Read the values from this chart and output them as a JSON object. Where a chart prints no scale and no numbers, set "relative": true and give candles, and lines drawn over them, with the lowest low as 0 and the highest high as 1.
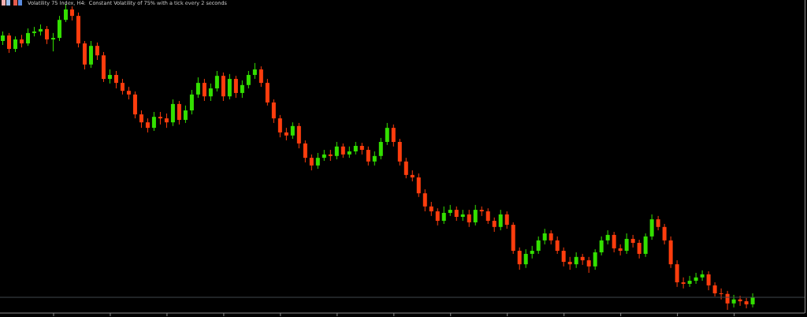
{
  "chart_data": {
    "type": "candlestick",
    "title": "Volatility 75 Index, H4:  Constant Volatility of 75% with a tick every 2 seconds",
    "relative": true,
    "categories": [
      null,
      null,
      null,
      null,
      null,
      null,
      null,
      null,
      null,
      null,
      null,
      null,
      null,
      null,
      null,
      null,
      null,
      null,
      null,
      null,
      null,
      null,
      null,
      null,
      null,
      null,
      null,
      null,
      null,
      null,
      null,
      null,
      null,
      null,
      null,
      null,
      null,
      null,
      null,
      null,
      null,
      null,
      null,
      null,
      null,
      null,
      null,
      null,
      null,
      null,
      null,
      null,
      null,
      null,
      null,
      null,
      null,
      null,
      null,
      null,
      null,
      null,
      null,
      null,
      null,
      null,
      null,
      null,
      null,
      null,
      null,
      null,
      null,
      null,
      null,
      null,
      null,
      null,
      null,
      null,
      null,
      null,
      null,
      null,
      null,
      null,
      null,
      null,
      null,
      null,
      null,
      null,
      null,
      null,
      null,
      null,
      null,
      null,
      null,
      null,
      null,
      null,
      null,
      null,
      null,
      null,
      null,
      null,
      null,
      null,
      null,
      null,
      null,
      null,
      null,
      null,
      null,
      null,
      null,
      null
    ],
    "ohlc": [
      [
        0.879,
        0.91,
        0.866,
        0.897
      ],
      [
        0.897,
        0.905,
        0.84,
        0.853
      ],
      [
        0.853,
        0.894,
        0.843,
        0.884
      ],
      [
        0.884,
        0.899,
        0.858,
        0.871
      ],
      [
        0.871,
        0.92,
        0.863,
        0.905
      ],
      [
        0.905,
        0.925,
        0.894,
        0.91
      ],
      [
        0.91,
        0.933,
        0.897,
        0.918
      ],
      [
        0.918,
        0.928,
        0.869,
        0.884
      ],
      [
        0.884,
        0.905,
        0.845,
        0.889
      ],
      [
        0.889,
        0.961,
        0.879,
        0.948
      ],
      [
        0.948,
        1.0,
        0.941,
        0.982
      ],
      [
        0.982,
        0.992,
        0.946,
        0.961
      ],
      [
        0.961,
        0.972,
        0.858,
        0.871
      ],
      [
        0.871,
        0.879,
        0.786,
        0.802
      ],
      [
        0.802,
        0.879,
        0.791,
        0.863
      ],
      [
        0.863,
        0.874,
        0.817,
        0.832
      ],
      [
        0.832,
        0.843,
        0.745,
        0.755
      ],
      [
        0.755,
        0.786,
        0.74,
        0.768
      ],
      [
        0.768,
        0.781,
        0.724,
        0.742
      ],
      [
        0.742,
        0.755,
        0.704,
        0.716
      ],
      [
        0.716,
        0.729,
        0.688,
        0.704
      ],
      [
        0.704,
        0.714,
        0.626,
        0.639
      ],
      [
        0.639,
        0.652,
        0.595,
        0.613
      ],
      [
        0.613,
        0.626,
        0.58,
        0.595
      ],
      [
        0.595,
        0.647,
        0.585,
        0.631
      ],
      [
        0.631,
        0.647,
        0.606,
        0.626
      ],
      [
        0.626,
        0.642,
        0.595,
        0.613
      ],
      [
        0.613,
        0.688,
        0.601,
        0.673
      ],
      [
        0.673,
        0.683,
        0.606,
        0.621
      ],
      [
        0.621,
        0.668,
        0.611,
        0.652
      ],
      [
        0.652,
        0.719,
        0.639,
        0.704
      ],
      [
        0.704,
        0.76,
        0.693,
        0.742
      ],
      [
        0.742,
        0.755,
        0.683,
        0.698
      ],
      [
        0.698,
        0.74,
        0.683,
        0.724
      ],
      [
        0.724,
        0.781,
        0.714,
        0.765
      ],
      [
        0.765,
        0.776,
        0.683,
        0.698
      ],
      [
        0.698,
        0.771,
        0.688,
        0.755
      ],
      [
        0.755,
        0.765,
        0.693,
        0.709
      ],
      [
        0.709,
        0.75,
        0.693,
        0.735
      ],
      [
        0.735,
        0.781,
        0.724,
        0.768
      ],
      [
        0.768,
        0.807,
        0.755,
        0.786
      ],
      [
        0.786,
        0.796,
        0.729,
        0.742
      ],
      [
        0.742,
        0.755,
        0.668,
        0.678
      ],
      [
        0.678,
        0.688,
        0.611,
        0.626
      ],
      [
        0.626,
        0.637,
        0.564,
        0.58
      ],
      [
        0.58,
        0.595,
        0.554,
        0.57
      ],
      [
        0.57,
        0.613,
        0.559,
        0.601
      ],
      [
        0.601,
        0.611,
        0.528,
        0.544
      ],
      [
        0.544,
        0.554,
        0.482,
        0.497
      ],
      [
        0.497,
        0.508,
        0.456,
        0.472
      ],
      [
        0.472,
        0.513,
        0.461,
        0.497
      ],
      [
        0.497,
        0.523,
        0.487,
        0.508
      ],
      [
        0.508,
        0.523,
        0.487,
        0.503
      ],
      [
        0.503,
        0.549,
        0.492,
        0.534
      ],
      [
        0.534,
        0.544,
        0.497,
        0.508
      ],
      [
        0.508,
        0.534,
        0.497,
        0.518
      ],
      [
        0.518,
        0.549,
        0.508,
        0.536
      ],
      [
        0.536,
        0.546,
        0.508,
        0.523
      ],
      [
        0.523,
        0.534,
        0.472,
        0.485
      ],
      [
        0.485,
        0.518,
        0.472,
        0.503
      ],
      [
        0.503,
        0.562,
        0.492,
        0.549
      ],
      [
        0.549,
        0.611,
        0.539,
        0.595
      ],
      [
        0.595,
        0.606,
        0.534,
        0.549
      ],
      [
        0.549,
        0.559,
        0.472,
        0.485
      ],
      [
        0.485,
        0.497,
        0.43,
        0.441
      ],
      [
        0.441,
        0.456,
        0.42,
        0.433
      ],
      [
        0.433,
        0.446,
        0.369,
        0.381
      ],
      [
        0.381,
        0.394,
        0.322,
        0.338
      ],
      [
        0.338,
        0.353,
        0.307,
        0.322
      ],
      [
        0.322,
        0.332,
        0.276,
        0.291
      ],
      [
        0.291,
        0.338,
        0.281,
        0.317
      ],
      [
        0.317,
        0.343,
        0.307,
        0.327
      ],
      [
        0.327,
        0.338,
        0.291,
        0.304
      ],
      [
        0.304,
        0.327,
        0.291,
        0.312
      ],
      [
        0.312,
        0.327,
        0.271,
        0.286
      ],
      [
        0.286,
        0.343,
        0.276,
        0.327
      ],
      [
        0.327,
        0.338,
        0.307,
        0.322
      ],
      [
        0.322,
        0.332,
        0.281,
        0.291
      ],
      [
        0.291,
        0.302,
        0.255,
        0.271
      ],
      [
        0.271,
        0.327,
        0.26,
        0.312
      ],
      [
        0.312,
        0.322,
        0.265,
        0.278
      ],
      [
        0.278,
        0.286,
        0.183,
        0.193
      ],
      [
        0.193,
        0.204,
        0.131,
        0.149
      ],
      [
        0.149,
        0.198,
        0.137,
        0.183
      ],
      [
        0.183,
        0.209,
        0.168,
        0.193
      ],
      [
        0.193,
        0.24,
        0.183,
        0.227
      ],
      [
        0.227,
        0.265,
        0.214,
        0.25
      ],
      [
        0.25,
        0.26,
        0.214,
        0.227
      ],
      [
        0.227,
        0.24,
        0.183,
        0.193
      ],
      [
        0.193,
        0.204,
        0.142,
        0.157
      ],
      [
        0.157,
        0.173,
        0.131,
        0.149
      ],
      [
        0.149,
        0.188,
        0.137,
        0.173
      ],
      [
        0.173,
        0.183,
        0.147,
        0.162
      ],
      [
        0.162,
        0.173,
        0.121,
        0.142
      ],
      [
        0.142,
        0.198,
        0.131,
        0.188
      ],
      [
        0.188,
        0.24,
        0.178,
        0.227
      ],
      [
        0.227,
        0.26,
        0.214,
        0.245
      ],
      [
        0.245,
        0.255,
        0.188,
        0.201
      ],
      [
        0.201,
        0.214,
        0.178,
        0.193
      ],
      [
        0.193,
        0.25,
        0.183,
        0.232
      ],
      [
        0.232,
        0.245,
        0.204,
        0.219
      ],
      [
        0.219,
        0.229,
        0.168,
        0.183
      ],
      [
        0.183,
        0.25,
        0.173,
        0.24
      ],
      [
        0.24,
        0.312,
        0.229,
        0.296
      ],
      [
        0.296,
        0.307,
        0.26,
        0.271
      ],
      [
        0.271,
        0.281,
        0.214,
        0.227
      ],
      [
        0.227,
        0.24,
        0.137,
        0.149
      ],
      [
        0.149,
        0.162,
        0.075,
        0.09
      ],
      [
        0.09,
        0.106,
        0.07,
        0.085
      ],
      [
        0.085,
        0.111,
        0.075,
        0.095
      ],
      [
        0.095,
        0.121,
        0.085,
        0.106
      ],
      [
        0.106,
        0.129,
        0.095,
        0.116
      ],
      [
        0.116,
        0.126,
        0.064,
        0.08
      ],
      [
        0.08,
        0.09,
        0.044,
        0.054
      ],
      [
        0.054,
        0.07,
        0.034,
        0.052
      ],
      [
        0.052,
        0.062,
        0.0,
        0.021
      ],
      [
        0.021,
        0.049,
        0.008,
        0.034
      ],
      [
        0.034,
        0.046,
        0.013,
        0.028
      ],
      [
        0.028,
        0.039,
        0.005,
        0.018
      ],
      [
        0.018,
        0.054,
        0.008,
        0.041
      ]
    ],
    "colors": [
      "#33e000",
      "#ff3d0d",
      "#33e000",
      "#ff3d0d",
      "#33e000",
      "#33e000",
      "#33e000",
      "#ff3d0d",
      "#33e000",
      "#33e000",
      "#33e000",
      "#ff3d0d",
      "#ff3d0d",
      "#ff3d0d",
      "#33e000",
      "#ff3d0d",
      "#ff3d0d",
      "#33e000",
      "#ff3d0d",
      "#ff3d0d",
      "#ff3d0d",
      "#ff3d0d",
      "#ff3d0d",
      "#ff3d0d",
      "#33e000",
      "#ff3d0d",
      "#ff3d0d",
      "#33e000",
      "#ff3d0d",
      "#33e000",
      "#33e000",
      "#33e000",
      "#ff3d0d",
      "#33e000",
      "#33e000",
      "#ff3d0d",
      "#33e000",
      "#ff3d0d",
      "#33e000",
      "#33e000",
      "#33e000",
      "#ff3d0d",
      "#ff3d0d",
      "#ff3d0d",
      "#ff3d0d",
      "#ff3d0d",
      "#33e000",
      "#ff3d0d",
      "#ff3d0d",
      "#ff3d0d",
      "#33e000",
      "#33e000",
      "#ff3d0d",
      "#33e000",
      "#ff3d0d",
      "#33e000",
      "#33e000",
      "#ff3d0d",
      "#ff3d0d",
      "#33e000",
      "#33e000",
      "#33e000",
      "#ff3d0d",
      "#ff3d0d",
      "#ff3d0d",
      "#ff3d0d",
      "#ff3d0d",
      "#ff3d0d",
      "#ff3d0d",
      "#ff3d0d",
      "#33e000",
      "#33e000",
      "#ff3d0d",
      "#33e000",
      "#ff3d0d",
      "#33e000",
      "#ff3d0d",
      "#ff3d0d",
      "#ff3d0d",
      "#33e000",
      "#ff3d0d",
      "#ff3d0d",
      "#ff3d0d",
      "#33e000",
      "#33e000",
      "#33e000",
      "#33e000",
      "#ff3d0d",
      "#ff3d0d",
      "#ff3d0d",
      "#ff3d0d",
      "#33e000",
      "#ff3d0d",
      "#ff3d0d",
      "#33e000",
      "#33e000",
      "#33e000",
      "#ff3d0d",
      "#ff3d0d",
      "#33e000",
      "#ff3d0d",
      "#ff3d0d",
      "#33e000",
      "#33e000",
      "#ff3d0d",
      "#ff3d0d",
      "#ff3d0d",
      "#ff3d0d",
      "#ff3d0d",
      "#33e000",
      "#33e000",
      "#33e000",
      "#ff3d0d",
      "#ff3d0d",
      "#ff3d0d",
      "#ff3d0d",
      "#33e000",
      "#ff3d0d",
      "#ff3d0d",
      "#33e000"
    ],
    "ref_lines": [
      {
        "axis": "y",
        "value": 0.041,
        "color": "#41474e"
      }
    ]
  }
}
